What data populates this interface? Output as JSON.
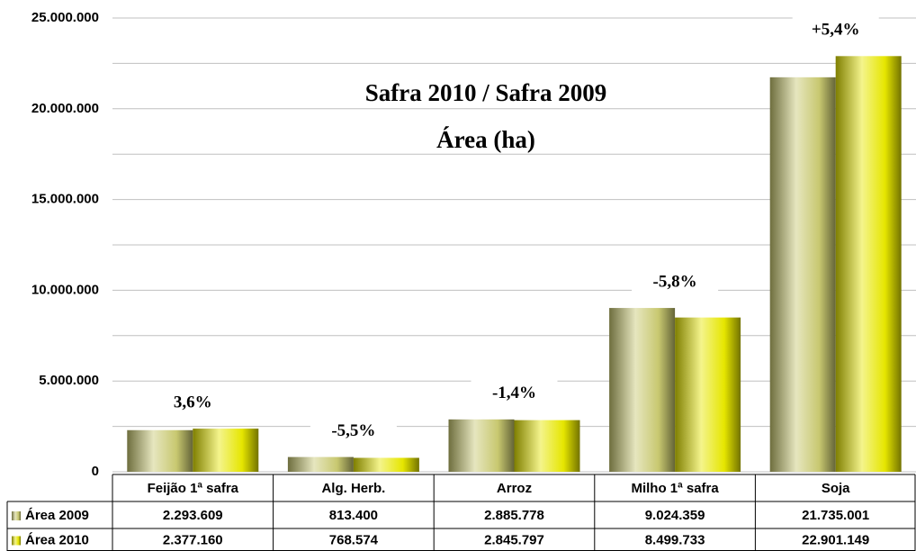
{
  "chart_data": {
    "type": "bar",
    "title": "Safra 2010 / Safra 2009",
    "subtitle": "Área (ha)",
    "categories": [
      "Feijão 1ª safra",
      "Alg. Herb.",
      "Arroz",
      "Milho 1ª safra",
      "Soja"
    ],
    "series": [
      {
        "name": "Área 2009",
        "color": "#c8c870",
        "values": [
          2293609,
          813400,
          2885778,
          9024359,
          21735001
        ],
        "value_labels": [
          "2.293.609",
          "813.400",
          "2.885.778",
          "9.024.359",
          "21.735.001"
        ]
      },
      {
        "name": "Área 2010",
        "color": "#e6e600",
        "values": [
          2377160,
          768574,
          2845797,
          8499733,
          22901149
        ],
        "value_labels": [
          "2.377.160",
          "768.574",
          "2.845.797",
          "8.499.733",
          "22.901.149"
        ]
      }
    ],
    "change_labels": [
      "3,6%",
      "-5,5%",
      "-1,4%",
      "-5,8%",
      "+5,4%"
    ],
    "change_label_colors": [
      "#000000",
      "#ff0000",
      "#ff0000",
      "#ff0000",
      "#000000"
    ],
    "ylim": [
      0,
      25000000
    ],
    "yticks": [
      {
        "value": 0,
        "label": "0"
      },
      {
        "value": 5000000,
        "label": "5.000.000"
      },
      {
        "value": 10000000,
        "label": "10.000.000"
      },
      {
        "value": 15000000,
        "label": "15.000.000"
      },
      {
        "value": 20000000,
        "label": "20.000.000"
      },
      {
        "value": 25000000,
        "label": "25.000.000"
      }
    ],
    "minor_yticks": [
      2500000,
      7500000,
      12500000,
      17500000,
      22500000
    ],
    "grid": true
  }
}
